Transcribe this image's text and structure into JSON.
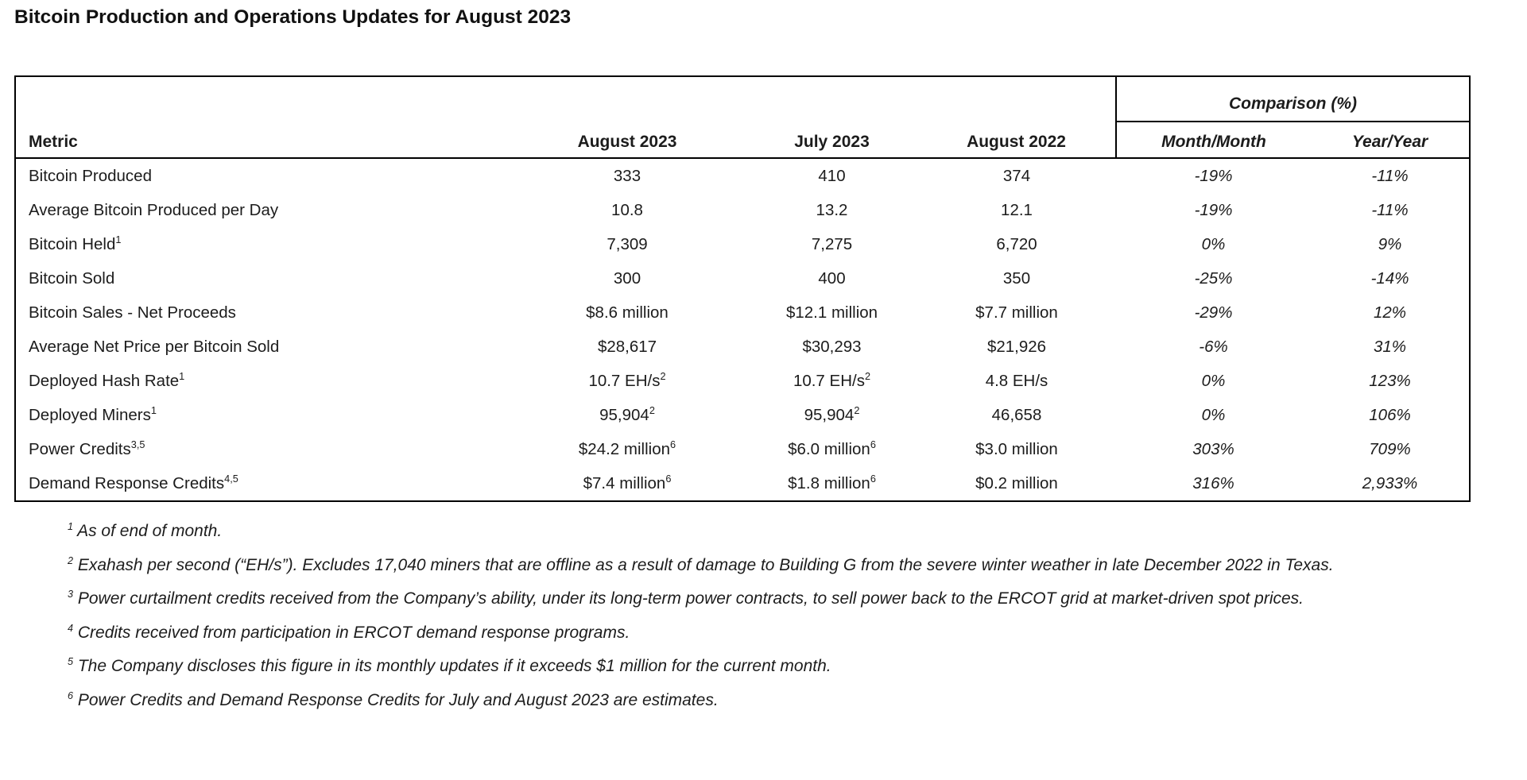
{
  "page": {
    "title": "Bitcoin Production and Operations Updates for August 2023"
  },
  "table": {
    "group_header": "Comparison (%)",
    "columns": {
      "metric": "Metric",
      "aug2023": "August 2023",
      "jul2023": "July 2023",
      "aug2022": "August 2022",
      "mom": "Month/Month",
      "yoy": "Year/Year"
    },
    "rows": [
      {
        "metric": "Bitcoin Produced",
        "metric_sup": "",
        "aug2023": "333",
        "aug2023_sup": "",
        "jul2023": "410",
        "jul2023_sup": "",
        "aug2022": "374",
        "mom": "-19%",
        "yoy": "-11%"
      },
      {
        "metric": "Average Bitcoin Produced per Day",
        "metric_sup": "",
        "aug2023": "10.8",
        "aug2023_sup": "",
        "jul2023": "13.2",
        "jul2023_sup": "",
        "aug2022": "12.1",
        "mom": "-19%",
        "yoy": "-11%"
      },
      {
        "metric": "Bitcoin Held",
        "metric_sup": "1",
        "aug2023": "7,309",
        "aug2023_sup": "",
        "jul2023": "7,275",
        "jul2023_sup": "",
        "aug2022": "6,720",
        "mom": "0%",
        "yoy": "9%"
      },
      {
        "metric": "Bitcoin Sold",
        "metric_sup": "",
        "aug2023": "300",
        "aug2023_sup": "",
        "jul2023": "400",
        "jul2023_sup": "",
        "aug2022": "350",
        "mom": "-25%",
        "yoy": "-14%"
      },
      {
        "metric": "Bitcoin Sales - Net Proceeds",
        "metric_sup": "",
        "aug2023": "$8.6 million",
        "aug2023_sup": "",
        "jul2023": "$12.1 million",
        "jul2023_sup": "",
        "aug2022": "$7.7 million",
        "mom": "-29%",
        "yoy": "12%"
      },
      {
        "metric": "Average Net Price per Bitcoin Sold",
        "metric_sup": "",
        "aug2023": "$28,617",
        "aug2023_sup": "",
        "jul2023": "$30,293",
        "jul2023_sup": "",
        "aug2022": "$21,926",
        "mom": "-6%",
        "yoy": "31%"
      },
      {
        "metric": "Deployed Hash Rate",
        "metric_sup": "1",
        "aug2023": "10.7 EH/s",
        "aug2023_sup": "2",
        "jul2023": "10.7 EH/s",
        "jul2023_sup": "2",
        "aug2022": "4.8 EH/s",
        "mom": "0%",
        "yoy": "123%"
      },
      {
        "metric": "Deployed Miners",
        "metric_sup": "1",
        "aug2023": "95,904",
        "aug2023_sup": "2",
        "jul2023": "95,904",
        "jul2023_sup": "2",
        "aug2022": "46,658",
        "mom": "0%",
        "yoy": "106%"
      },
      {
        "metric": "Power Credits",
        "metric_sup": "3,5",
        "aug2023": "$24.2 million",
        "aug2023_sup": "6",
        "jul2023": "$6.0 million",
        "jul2023_sup": "6",
        "aug2022": "$3.0 million",
        "mom": "303%",
        "yoy": "709%"
      },
      {
        "metric": "Demand Response Credits",
        "metric_sup": "4,5",
        "aug2023": "$7.4 million",
        "aug2023_sup": "6",
        "jul2023": "$1.8 million",
        "jul2023_sup": "6",
        "aug2022": "$0.2 million",
        "mom": "316%",
        "yoy": "2,933%"
      }
    ]
  },
  "footnotes": [
    {
      "marker": "1",
      "text": "As of end of month."
    },
    {
      "marker": "2",
      "text": "Exahash per second (“EH/s”). Excludes 17,040 miners that are offline as a result of damage to Building G from the severe winter weather in late December 2022 in Texas."
    },
    {
      "marker": "3",
      "text": "Power curtailment credits received from the Company’s ability, under its long-term power contracts, to sell power back to the ERCOT grid at market-driven spot prices."
    },
    {
      "marker": "4",
      "text": "Credits received from participation in ERCOT demand response programs."
    },
    {
      "marker": "5",
      "text": "The Company discloses this figure in its monthly updates if it exceeds $1 million for the current month."
    },
    {
      "marker": "6",
      "text": "Power Credits and Demand Response Credits for July and August 2023 are estimates."
    }
  ]
}
